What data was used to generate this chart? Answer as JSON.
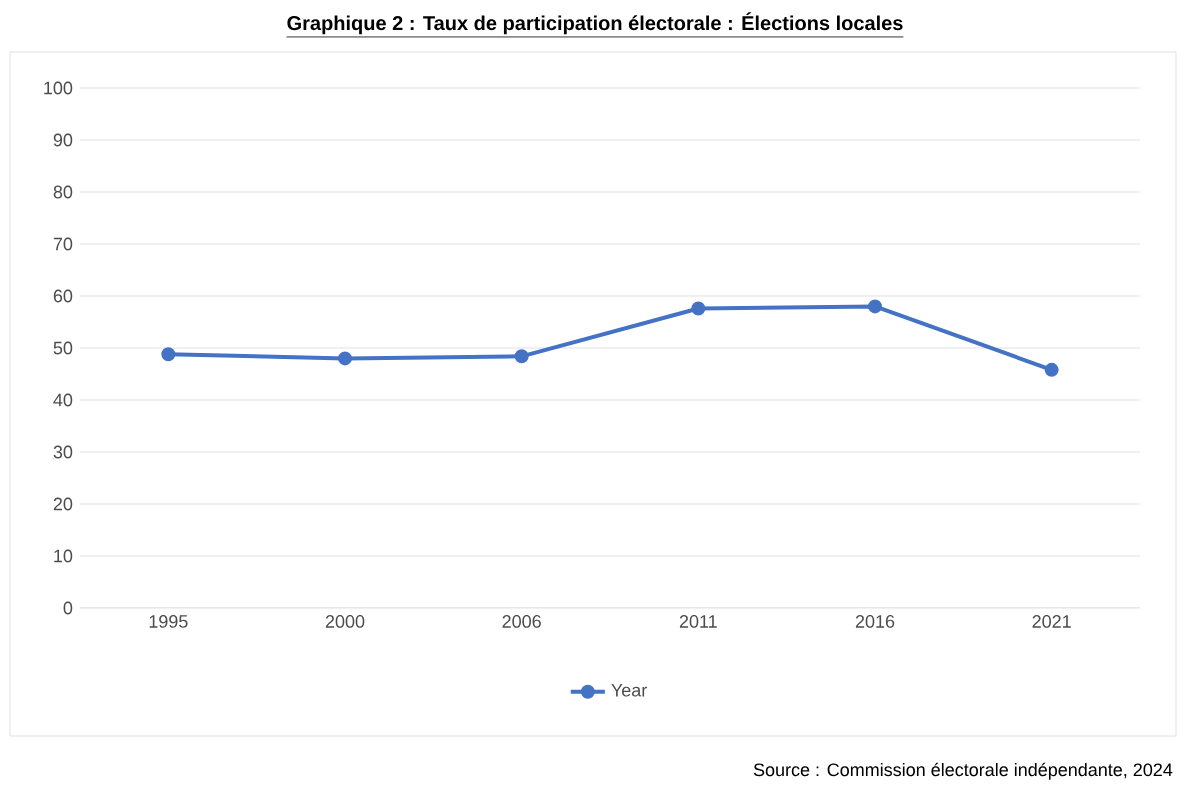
{
  "chart_data": {
    "type": "line",
    "title": "Graphique 2 : Taux de participation électorale : Élections locales",
    "categories": [
      "1995",
      "2000",
      "2006",
      "2011",
      "2016",
      "2021"
    ],
    "series": [
      {
        "name": "Year",
        "color": "#4472c4",
        "values": [
          48.8,
          48.0,
          48.4,
          57.6,
          58.0,
          45.8
        ]
      }
    ],
    "ylim": [
      0,
      100
    ],
    "yticks": [
      0,
      10,
      20,
      30,
      40,
      50,
      60,
      70,
      80,
      90,
      100
    ],
    "grid": "y",
    "legend": "bottom",
    "marker": "circle",
    "line_style": "solid",
    "annotations": [
      "Source : Commission électorale indépendante, 2024"
    ]
  }
}
